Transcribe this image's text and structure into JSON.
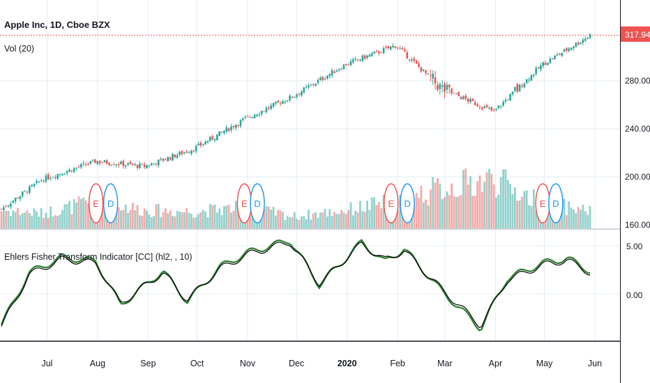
{
  "header": {
    "symbol_title": "Apple Inc, 1D, Cboe BZX",
    "volume_label": "Vol (20)",
    "indicator_title": "Ehlers Fisher Transform Indicator [CC] (hl2, , 10)"
  },
  "colors": {
    "up": "#26a69a",
    "down": "#ef5350",
    "fisher": "#2e7d32",
    "trigger": "#000000",
    "price_line": "#ef5350",
    "grid": "#e1ecf2",
    "earnings_red": "#ef5350",
    "dividend_blue": "#2196f3"
  },
  "price_axis": {
    "ticks": [
      "280.00",
      "240.00",
      "200.00",
      "160.00"
    ],
    "last_price": "317.94"
  },
  "indicator_axis": {
    "ticks": [
      "5.00",
      "0.00"
    ]
  },
  "time_axis": {
    "labels": [
      "Jul",
      "Aug",
      "Sep",
      "Oct",
      "Nov",
      "Dec",
      "2020",
      "Feb",
      "Mar",
      "Apr",
      "May",
      "Jun"
    ]
  },
  "events": [
    {
      "type": "earnings",
      "letter": "E"
    },
    {
      "type": "dividend",
      "letter": "D"
    },
    {
      "type": "earnings",
      "letter": "E"
    },
    {
      "type": "dividend",
      "letter": "D"
    },
    {
      "type": "earnings",
      "letter": "E"
    },
    {
      "type": "dividend",
      "letter": "D"
    },
    {
      "type": "earnings",
      "letter": "E"
    },
    {
      "type": "dividend",
      "letter": "D"
    }
  ],
  "chart_data": [
    {
      "type": "candlestick",
      "title": "Apple Inc, 1D, Cboe BZX",
      "ylim": [
        155,
        330
      ],
      "last_price": 317.94,
      "x": [
        "2019-06-03",
        "2019-06-28",
        "2019-07-31",
        "2019-08-30",
        "2019-09-30",
        "2019-10-31",
        "2019-11-29",
        "2019-12-31",
        "2020-01-31",
        "2020-02-28",
        "2020-03-31",
        "2020-04-30",
        "2020-05-29"
      ],
      "close": [
        173.3,
        197.9,
        213.0,
        208.7,
        224.0,
        248.8,
        267.2,
        293.6,
        309.5,
        273.4,
        254.3,
        293.8,
        317.9
      ],
      "volume_relative": [
        0.3,
        0.25,
        0.45,
        0.3,
        0.28,
        0.35,
        0.2,
        0.3,
        0.45,
        0.65,
        0.8,
        0.4,
        0.3
      ]
    },
    {
      "type": "line",
      "title": "Ehlers Fisher Transform Indicator [CC] (hl2, , 10)",
      "ylim": [
        -4.5,
        6.2
      ],
      "x": [
        "2019-06-03",
        "2019-06-20",
        "2019-07-10",
        "2019-07-31",
        "2019-08-15",
        "2019-09-10",
        "2019-09-25",
        "2019-10-15",
        "2019-11-01",
        "2019-11-27",
        "2019-12-15",
        "2020-01-10",
        "2020-01-24",
        "2020-02-05",
        "2020-02-28",
        "2020-03-23",
        "2020-04-08",
        "2020-04-30",
        "2020-05-15",
        "2020-05-29"
      ],
      "series": [
        {
          "name": "",
          "values": [
            -3.2,
            2.2,
            3.8,
            3.4,
            -1.2,
            2.4,
            -0.8,
            2.8,
            4.3,
            5.6,
            0.9,
            5.4,
            3.3,
            4.7,
            0.3,
            -3.6,
            1.6,
            3.2,
            3.7,
            2.4
          ]
        },
        {
          "name": "",
          "values": [
            -3.4,
            2.0,
            3.6,
            3.2,
            -1.0,
            2.2,
            -0.6,
            2.6,
            4.1,
            5.4,
            1.1,
            5.2,
            3.5,
            4.5,
            0.5,
            -3.3,
            1.4,
            3.0,
            3.5,
            2.2
          ]
        }
      ]
    }
  ]
}
